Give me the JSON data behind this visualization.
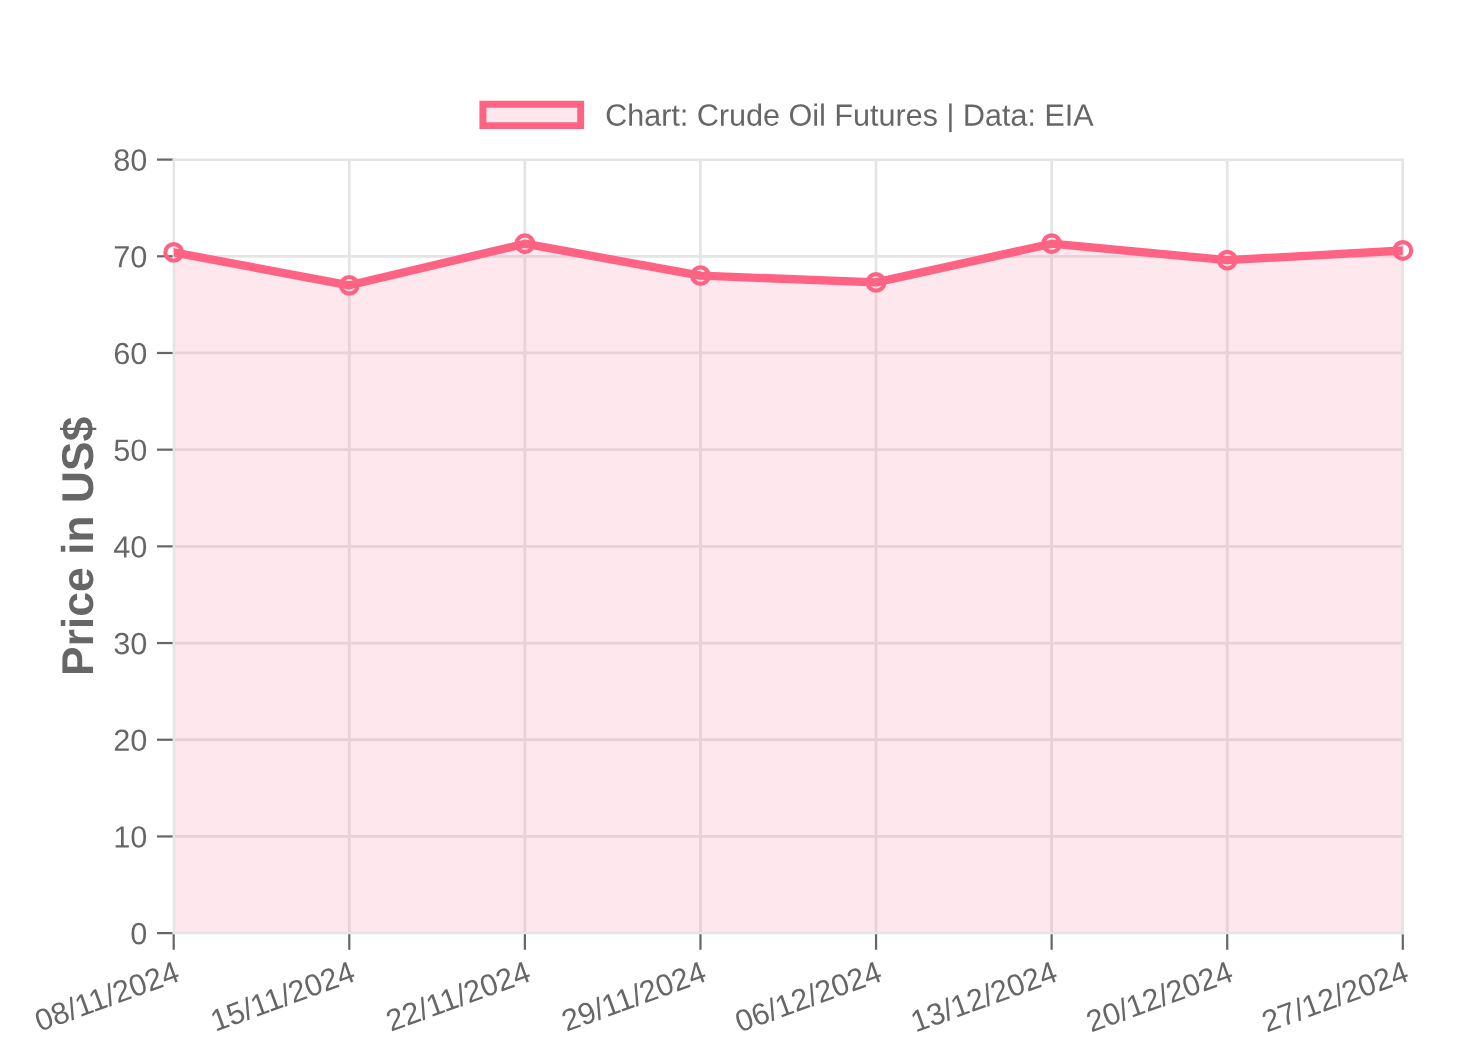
{
  "chart_data": {
    "type": "area",
    "ylabel": "Price in US$",
    "categories": [
      "08/11/2024",
      "15/11/2024",
      "22/11/2024",
      "29/11/2024",
      "06/12/2024",
      "13/12/2024",
      "20/12/2024",
      "27/12/2024"
    ],
    "series": [
      {
        "name": "Chart: Crude Oil Futures | Data: EIA",
        "color": "#ff6384",
        "values": [
          70.4,
          67.0,
          71.3,
          68.0,
          67.3,
          71.3,
          69.6,
          70.6
        ]
      }
    ],
    "ylim": [
      0,
      80
    ],
    "yticks": [
      0,
      10,
      20,
      30,
      40,
      50,
      60,
      70,
      80
    ],
    "grid": true,
    "legend": "top",
    "marker": "circle",
    "line_style": "solid"
  }
}
